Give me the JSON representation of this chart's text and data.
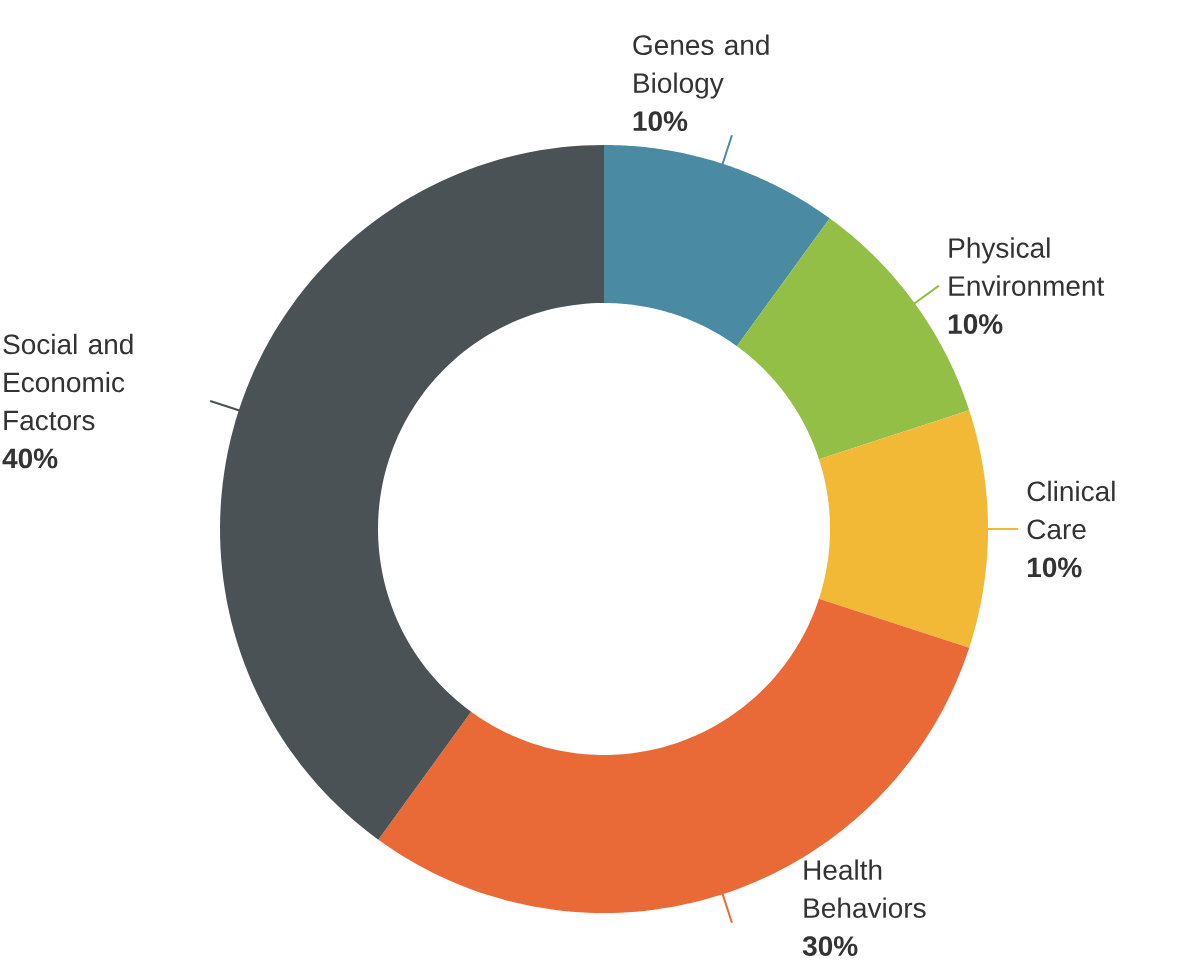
{
  "chart_data": {
    "type": "donut",
    "categories": [
      "Genes and Biology",
      "Physical Environment",
      "Clinical Care",
      "Health Behaviors",
      "Social and Economic Factors"
    ],
    "values": [
      10,
      10,
      10,
      30,
      40
    ],
    "colors": [
      "#4a8aa2",
      "#93bf47",
      "#f2b937",
      "#e96a37",
      "#4b5256"
    ],
    "value_labels": [
      "10%",
      "10%",
      "10%",
      "30%",
      "40%"
    ]
  }
}
